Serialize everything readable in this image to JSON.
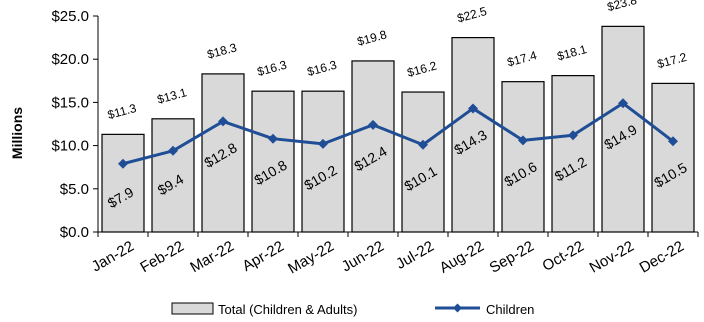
{
  "chart_data": {
    "type": "bar",
    "categories": [
      "Jan-22",
      "Feb-22",
      "Mar-22",
      "Apr-22",
      "May-22",
      "Jun-22",
      "Jul-22",
      "Aug-22",
      "Sep-22",
      "Oct-22",
      "Nov-22",
      "Dec-22"
    ],
    "series": [
      {
        "name": "Total (Children & Adults)",
        "type": "bar",
        "values": [
          11.3,
          13.1,
          18.3,
          16.3,
          16.3,
          19.8,
          16.2,
          22.5,
          17.4,
          18.1,
          23.8,
          17.2
        ],
        "labels": [
          "$11.3",
          "$13.1",
          "$18.3",
          "$16.3",
          "$16.3",
          "$19.8",
          "$16.2",
          "$22.5",
          "$17.4",
          "$18.1",
          "$23.8",
          "$17.2"
        ],
        "color": "#d9d9d9"
      },
      {
        "name": "Children",
        "type": "line",
        "values": [
          7.9,
          9.4,
          12.8,
          10.8,
          10.2,
          12.4,
          10.1,
          14.3,
          10.6,
          11.2,
          14.9,
          10.5
        ],
        "labels": [
          "$7.9",
          "$9.4",
          "$12.8",
          "$10.8",
          "$10.2",
          "$12.4",
          "$10.1",
          "$14.3",
          "$10.6",
          "$11.2",
          "$14.9",
          "$10.5"
        ],
        "color": "#1f4e96"
      }
    ],
    "ylabel": "Millions",
    "ylim": [
      0,
      25
    ],
    "yticks": [
      0,
      5,
      10,
      15,
      20,
      25
    ],
    "ytick_labels": [
      "$0.0",
      "$5.0",
      "$10.0",
      "$15.0",
      "$20.0",
      "$25.0"
    ],
    "legend_position": "bottom",
    "grid": false
  }
}
